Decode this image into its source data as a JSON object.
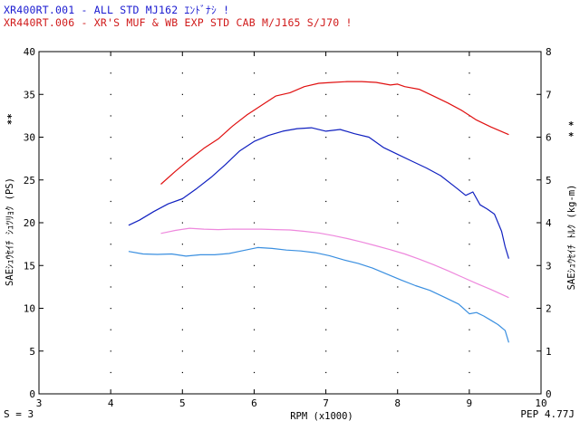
{
  "header": {
    "line1": "XR400RT.001 - ALL STD MJ162 ｴﾝﾄﾞﾅｼ !",
    "line2": "XR440RT.006 - XR'S MUF & WB EXP STD CAB M/J165 S/J70 !"
  },
  "footer": {
    "left": "S = 3",
    "right": "PEP 4.77J"
  },
  "colors": {
    "blue_dark": "#1020c0",
    "red": "#e01010",
    "pink": "#ee88dd",
    "blue_light": "#3a8fe0"
  },
  "chart_data": {
    "type": "line",
    "xlabel": "RPM (x1000)",
    "ylabel_left": "SAEｼｭｳｾｲﾁ ｼｭﾂﾘｮｸ (PS)",
    "ylabel_right": "SAEｼｭｳｾｲﾁ ﾄﾙｸ (kg-m)",
    "left_markers": "**",
    "right_markers": [
      "*",
      "*"
    ],
    "xlim": [
      3,
      10
    ],
    "ylim_left": [
      0,
      40
    ],
    "ylim_right": [
      0,
      8
    ],
    "x_ticks": [
      "3",
      "4",
      "5",
      "6",
      "7",
      "8",
      "9",
      "10"
    ],
    "y_ticks_left": [
      "0",
      "5",
      "10",
      "15",
      "20",
      "25",
      "30",
      "35",
      "40"
    ],
    "y_ticks_right": [
      "0",
      "1",
      "2",
      "3",
      "4",
      "5",
      "6",
      "7",
      "8"
    ],
    "grid": "dotted",
    "series": [
      {
        "axis": "left",
        "color": "#1020c0",
        "x": [
          4.25,
          4.4,
          4.6,
          4.8,
          5.0,
          5.2,
          5.4,
          5.6,
          5.8,
          6.0,
          6.2,
          6.4,
          6.6,
          6.8,
          7.0,
          7.2,
          7.4,
          7.6,
          7.8,
          8.0,
          8.2,
          8.4,
          8.6,
          8.8,
          8.95,
          9.05,
          9.15,
          9.25,
          9.35,
          9.45,
          9.5,
          9.55
        ],
        "y": [
          19.7,
          20.3,
          21.3,
          22.2,
          22.8,
          24.0,
          25.3,
          26.8,
          28.4,
          29.5,
          30.2,
          30.7,
          31.0,
          31.1,
          30.7,
          30.9,
          30.4,
          30.0,
          28.8,
          28.0,
          27.2,
          26.4,
          25.5,
          24.2,
          23.2,
          23.6,
          22.1,
          21.6,
          21.0,
          19.0,
          17.2,
          15.8
        ]
      },
      {
        "axis": "left",
        "color": "#e01010",
        "x": [
          4.7,
          4.9,
          5.1,
          5.3,
          5.5,
          5.7,
          5.9,
          6.1,
          6.3,
          6.5,
          6.7,
          6.9,
          7.1,
          7.3,
          7.5,
          7.7,
          7.9,
          8.0,
          8.1,
          8.3,
          8.5,
          8.7,
          8.9,
          9.1,
          9.3,
          9.55
        ],
        "y": [
          24.5,
          26.0,
          27.4,
          28.7,
          29.8,
          31.3,
          32.6,
          33.7,
          34.8,
          35.2,
          35.9,
          36.3,
          36.4,
          36.5,
          36.5,
          36.4,
          36.1,
          36.2,
          35.9,
          35.6,
          34.8,
          34.0,
          33.1,
          32.0,
          31.2,
          30.3
        ]
      },
      {
        "axis": "right",
        "color": "#ee88dd",
        "x": [
          4.7,
          4.9,
          5.1,
          5.3,
          5.5,
          5.7,
          5.9,
          6.1,
          6.3,
          6.5,
          6.7,
          6.9,
          7.1,
          7.3,
          7.5,
          7.7,
          7.9,
          8.1,
          8.3,
          8.5,
          8.7,
          8.9,
          9.1,
          9.3,
          9.55
        ],
        "y": [
          3.75,
          3.82,
          3.87,
          3.85,
          3.84,
          3.85,
          3.85,
          3.85,
          3.84,
          3.83,
          3.8,
          3.76,
          3.7,
          3.63,
          3.55,
          3.46,
          3.37,
          3.27,
          3.15,
          3.02,
          2.88,
          2.73,
          2.58,
          2.44,
          2.25
        ]
      },
      {
        "axis": "right",
        "color": "#3a8fe0",
        "x": [
          4.25,
          4.45,
          4.65,
          4.85,
          5.05,
          5.25,
          5.45,
          5.65,
          5.85,
          6.05,
          6.25,
          6.45,
          6.65,
          6.85,
          7.05,
          7.25,
          7.45,
          7.65,
          7.85,
          8.05,
          8.25,
          8.45,
          8.65,
          8.85,
          9.0,
          9.1,
          9.2,
          9.3,
          9.4,
          9.5,
          9.55
        ],
        "y": [
          3.33,
          3.27,
          3.26,
          3.27,
          3.22,
          3.25,
          3.25,
          3.28,
          3.35,
          3.42,
          3.4,
          3.36,
          3.34,
          3.3,
          3.23,
          3.13,
          3.05,
          2.94,
          2.8,
          2.66,
          2.53,
          2.42,
          2.26,
          2.1,
          1.87,
          1.9,
          1.82,
          1.72,
          1.62,
          1.48,
          1.2
        ]
      }
    ]
  }
}
